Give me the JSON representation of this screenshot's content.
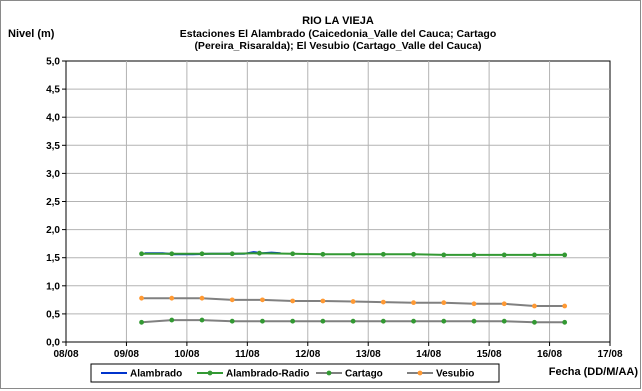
{
  "chart_data": {
    "type": "line",
    "title": "RIO LA VIEJA",
    "subtitle_lines": [
      "Estaciones El Alambrado (Caicedonia_Valle del Cauca; Cartago",
      "(Pereira_Risaralda);  El Vesubio (Cartago_Valle del Cauca)"
    ],
    "ylabel": "Nivel (m)",
    "xlabel": "Fecha (DD/M/AA)",
    "ylim": [
      0,
      5
    ],
    "yticks": [
      "0,0",
      "0,5",
      "1,0",
      "1,5",
      "2,0",
      "2,5",
      "3,0",
      "3,5",
      "4,0",
      "4,5",
      "5,0"
    ],
    "xlim": [
      0,
      9
    ],
    "xticks": [
      "08/08",
      "09/08",
      "10/08",
      "11/08",
      "12/08",
      "13/08",
      "14/08",
      "15/08",
      "16/08",
      "17/08"
    ],
    "grid": true,
    "legend_position": "bottom",
    "series": [
      {
        "name": "Alambrado",
        "color": "#0033cc",
        "marker": "none",
        "points": [
          [
            1.3,
            1.58
          ],
          [
            1.6,
            1.58
          ],
          [
            1.8,
            1.56
          ],
          [
            2.1,
            1.56
          ],
          [
            2.4,
            1.57
          ],
          [
            2.75,
            1.57
          ],
          [
            2.95,
            1.57
          ],
          [
            3.1,
            1.6
          ],
          [
            3.25,
            1.58
          ],
          [
            3.4,
            1.59
          ],
          [
            3.55,
            1.58
          ]
        ]
      },
      {
        "name": "Alambrado-Radio",
        "color": "#339933",
        "marker": "circle",
        "points": [
          [
            1.25,
            1.57
          ],
          [
            1.75,
            1.57
          ],
          [
            2.25,
            1.57
          ],
          [
            2.75,
            1.57
          ],
          [
            3.2,
            1.58
          ],
          [
            3.75,
            1.57
          ],
          [
            4.25,
            1.56
          ],
          [
            4.75,
            1.56
          ],
          [
            5.25,
            1.56
          ],
          [
            5.75,
            1.56
          ],
          [
            6.25,
            1.55
          ],
          [
            6.75,
            1.55
          ],
          [
            7.25,
            1.55
          ],
          [
            7.75,
            1.55
          ],
          [
            8.25,
            1.55
          ]
        ]
      },
      {
        "name": "Cartago",
        "color": "#808080",
        "marker": "circle",
        "marker_color": "#339933",
        "points": [
          [
            1.25,
            0.35
          ],
          [
            1.75,
            0.39
          ],
          [
            2.25,
            0.39
          ],
          [
            2.75,
            0.37
          ],
          [
            3.25,
            0.37
          ],
          [
            3.75,
            0.37
          ],
          [
            4.25,
            0.37
          ],
          [
            4.75,
            0.37
          ],
          [
            5.25,
            0.37
          ],
          [
            5.75,
            0.37
          ],
          [
            6.25,
            0.37
          ],
          [
            6.75,
            0.37
          ],
          [
            7.25,
            0.37
          ],
          [
            7.75,
            0.35
          ],
          [
            8.25,
            0.35
          ]
        ]
      },
      {
        "name": "Vesubio",
        "color": "#808080",
        "marker": "circle",
        "marker_color": "#ff9933",
        "points": [
          [
            1.25,
            0.78
          ],
          [
            1.75,
            0.78
          ],
          [
            2.25,
            0.78
          ],
          [
            2.75,
            0.75
          ],
          [
            3.25,
            0.75
          ],
          [
            3.75,
            0.73
          ],
          [
            4.25,
            0.73
          ],
          [
            4.75,
            0.72
          ],
          [
            5.25,
            0.71
          ],
          [
            5.75,
            0.7
          ],
          [
            6.25,
            0.7
          ],
          [
            6.75,
            0.68
          ],
          [
            7.25,
            0.68
          ],
          [
            7.75,
            0.64
          ],
          [
            8.25,
            0.64
          ]
        ]
      }
    ]
  }
}
